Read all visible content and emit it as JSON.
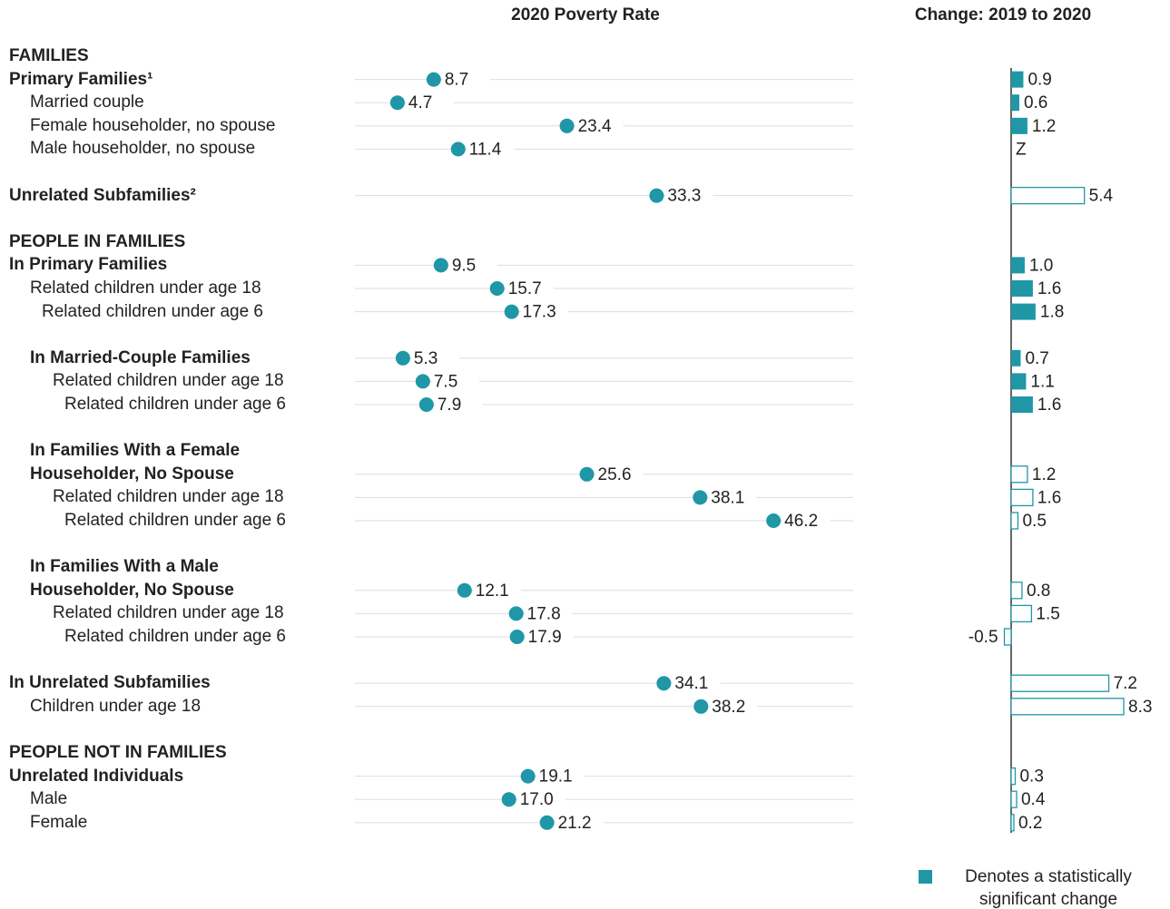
{
  "chart_data": [
    {
      "type": "dot",
      "title": "2020 Poverty Rate",
      "color": "#1f97a6",
      "xlim": [
        0,
        55
      ],
      "categories": [
        "FAMILIES",
        "Primary Families¹",
        "Married couple",
        "Female householder, no spouse",
        "Male householder, no spouse",
        "Unrelated Subfamilies²",
        "PEOPLE IN FAMILIES",
        "In Primary Families",
        "Related children under age 18",
        "Related children under age 6",
        "In Married-Couple Families",
        "Related children under age 18",
        "Related children under age 6",
        "In Families With a Female Householder, No Spouse",
        "Related children under age 18",
        "Related children under age 6",
        "In Families With a Male Householder, No Spouse",
        "Related children under age 18",
        "Related children under age 6",
        "In Unrelated Subfamilies",
        "Children under age 18",
        "PEOPLE NOT IN FAMILIES",
        "Unrelated Individuals",
        "Male",
        "Female"
      ],
      "values": [
        null,
        8.7,
        4.7,
        23.4,
        11.4,
        33.3,
        null,
        9.5,
        15.7,
        17.3,
        5.3,
        7.5,
        7.9,
        25.6,
        38.1,
        46.2,
        12.1,
        17.8,
        17.9,
        34.1,
        38.2,
        null,
        19.1,
        17.0,
        21.2
      ],
      "value_labels": [
        null,
        "8.7",
        "4.7",
        "23.4",
        "11.4",
        "33.3",
        null,
        "9.5",
        "15.7",
        "17.3",
        "5.3",
        "7.5",
        "7.9",
        "25.6",
        "38.1",
        "46.2",
        "12.1",
        "17.8",
        "17.9",
        "34.1",
        "38.2",
        null,
        "19.1",
        "17.0",
        "21.2"
      ]
    },
    {
      "type": "bar",
      "title": "Change: 2019 to 2020",
      "color": "#1f97a6",
      "xlim": [
        -1,
        10
      ],
      "values": [
        null,
        0.9,
        0.6,
        1.2,
        0,
        5.4,
        null,
        1.0,
        1.6,
        1.8,
        0.7,
        1.1,
        1.6,
        1.2,
        1.6,
        0.5,
        0.8,
        1.5,
        -0.5,
        7.2,
        8.3,
        null,
        0.3,
        0.4,
        0.2
      ],
      "value_labels": [
        null,
        "0.9",
        "0.6",
        "1.2",
        "Z",
        "5.4",
        null,
        "1.0",
        "1.6",
        "1.8",
        "0.7",
        "1.1",
        "1.6",
        "1.2",
        "1.6",
        "0.5",
        "0.8",
        "1.5",
        "-0.5",
        "7.2",
        "8.3",
        null,
        "0.3",
        "0.4",
        "0.2"
      ],
      "significant": [
        null,
        true,
        true,
        true,
        false,
        false,
        null,
        true,
        true,
        true,
        true,
        true,
        true,
        false,
        false,
        false,
        false,
        false,
        false,
        false,
        false,
        null,
        false,
        false,
        false
      ],
      "legend": "Denotes a statistically significant change"
    }
  ]
}
